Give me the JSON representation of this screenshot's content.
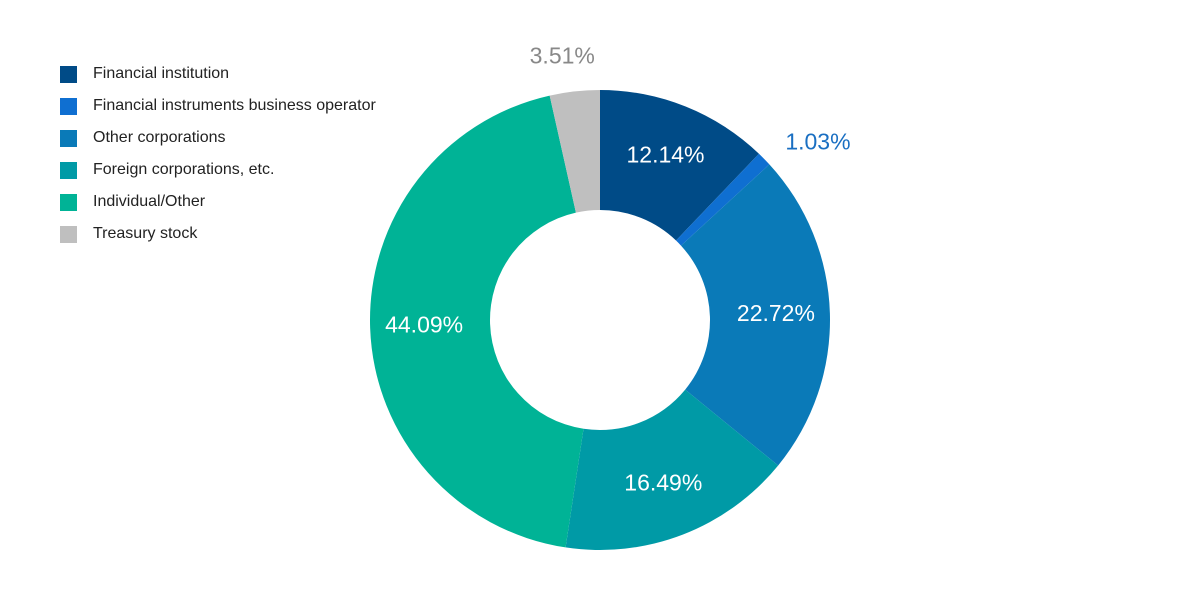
{
  "chart_data": {
    "type": "pie",
    "donut": true,
    "title": "",
    "legend_position": "top-left",
    "slices": [
      {
        "label": "Financial institution",
        "value": 12.14,
        "display": "12.14%",
        "color": "#004b87",
        "label_color": "#ffffff",
        "label_outside": false
      },
      {
        "label": "Financial instruments business operator",
        "value": 1.03,
        "display": "1.03%",
        "color": "#0f6fd1",
        "label_color": "#1a6fc2",
        "label_outside": true
      },
      {
        "label": "Other corporations",
        "value": 22.72,
        "display": "22.72%",
        "color": "#0a7ab8",
        "label_color": "#ffffff",
        "label_outside": false
      },
      {
        "label": "Foreign corporations, etc.",
        "value": 16.49,
        "display": "16.49%",
        "color": "#009aa6",
        "label_color": "#ffffff",
        "label_outside": false
      },
      {
        "label": "Individual/Other",
        "value": 44.09,
        "display": "44.09%",
        "color": "#00b396",
        "label_color": "#ffffff",
        "label_outside": false
      },
      {
        "label": "Treasury stock",
        "value": 3.51,
        "display": "3.51%",
        "color": "#bfbfbf",
        "label_color": "#888888",
        "label_outside": true
      }
    ]
  }
}
